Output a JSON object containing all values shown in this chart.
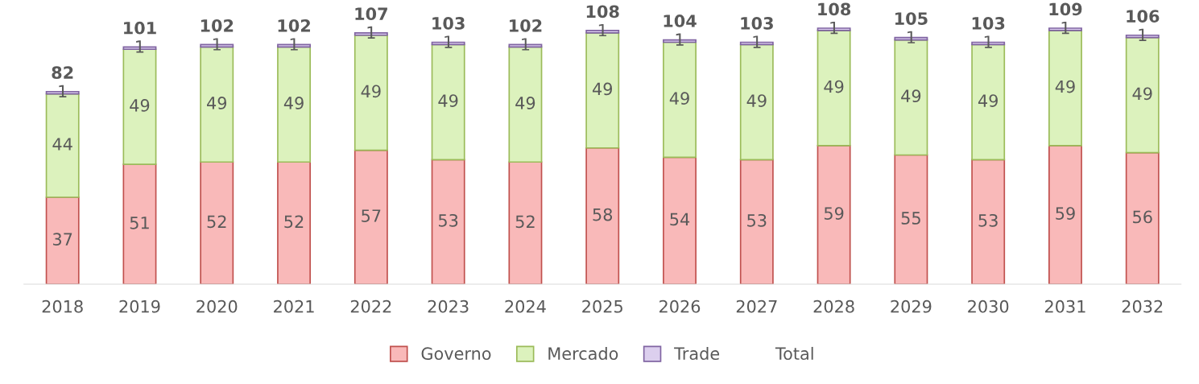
{
  "chart_data": {
    "type": "bar",
    "stacked": true,
    "data_labels": true,
    "legend": "bottom",
    "grid": false,
    "categories": [
      "2018",
      "2019",
      "2020",
      "2021",
      "2022",
      "2023",
      "2024",
      "2025",
      "2026",
      "2027",
      "2028",
      "2029",
      "2030",
      "2031",
      "2032"
    ],
    "series": [
      {
        "name": "Governo",
        "color": "#f9b9b9",
        "values": [
          37,
          51,
          52,
          52,
          57,
          53,
          52,
          58,
          54,
          53,
          59,
          55,
          53,
          59,
          56
        ]
      },
      {
        "name": "Mercado",
        "color": "#dcf2bd",
        "values": [
          44,
          49,
          49,
          49,
          49,
          49,
          49,
          49,
          49,
          49,
          49,
          49,
          49,
          49,
          49
        ]
      },
      {
        "name": "Trade",
        "color": "#dccfee",
        "values": [
          1,
          1,
          1,
          1,
          1,
          1,
          1,
          1,
          1,
          1,
          1,
          1,
          1,
          1,
          1
        ]
      },
      {
        "name": "Total",
        "type": "line",
        "values": [
          null,
          null,
          null,
          null,
          null,
          null,
          null,
          null,
          null,
          null,
          null,
          null,
          null,
          null,
          null
        ]
      }
    ],
    "totals": [
      "82",
      "101",
      "102",
      "102",
      "107",
      "103",
      "102",
      "108",
      "104",
      "103",
      "108",
      "105",
      "103",
      "109",
      "106"
    ]
  }
}
